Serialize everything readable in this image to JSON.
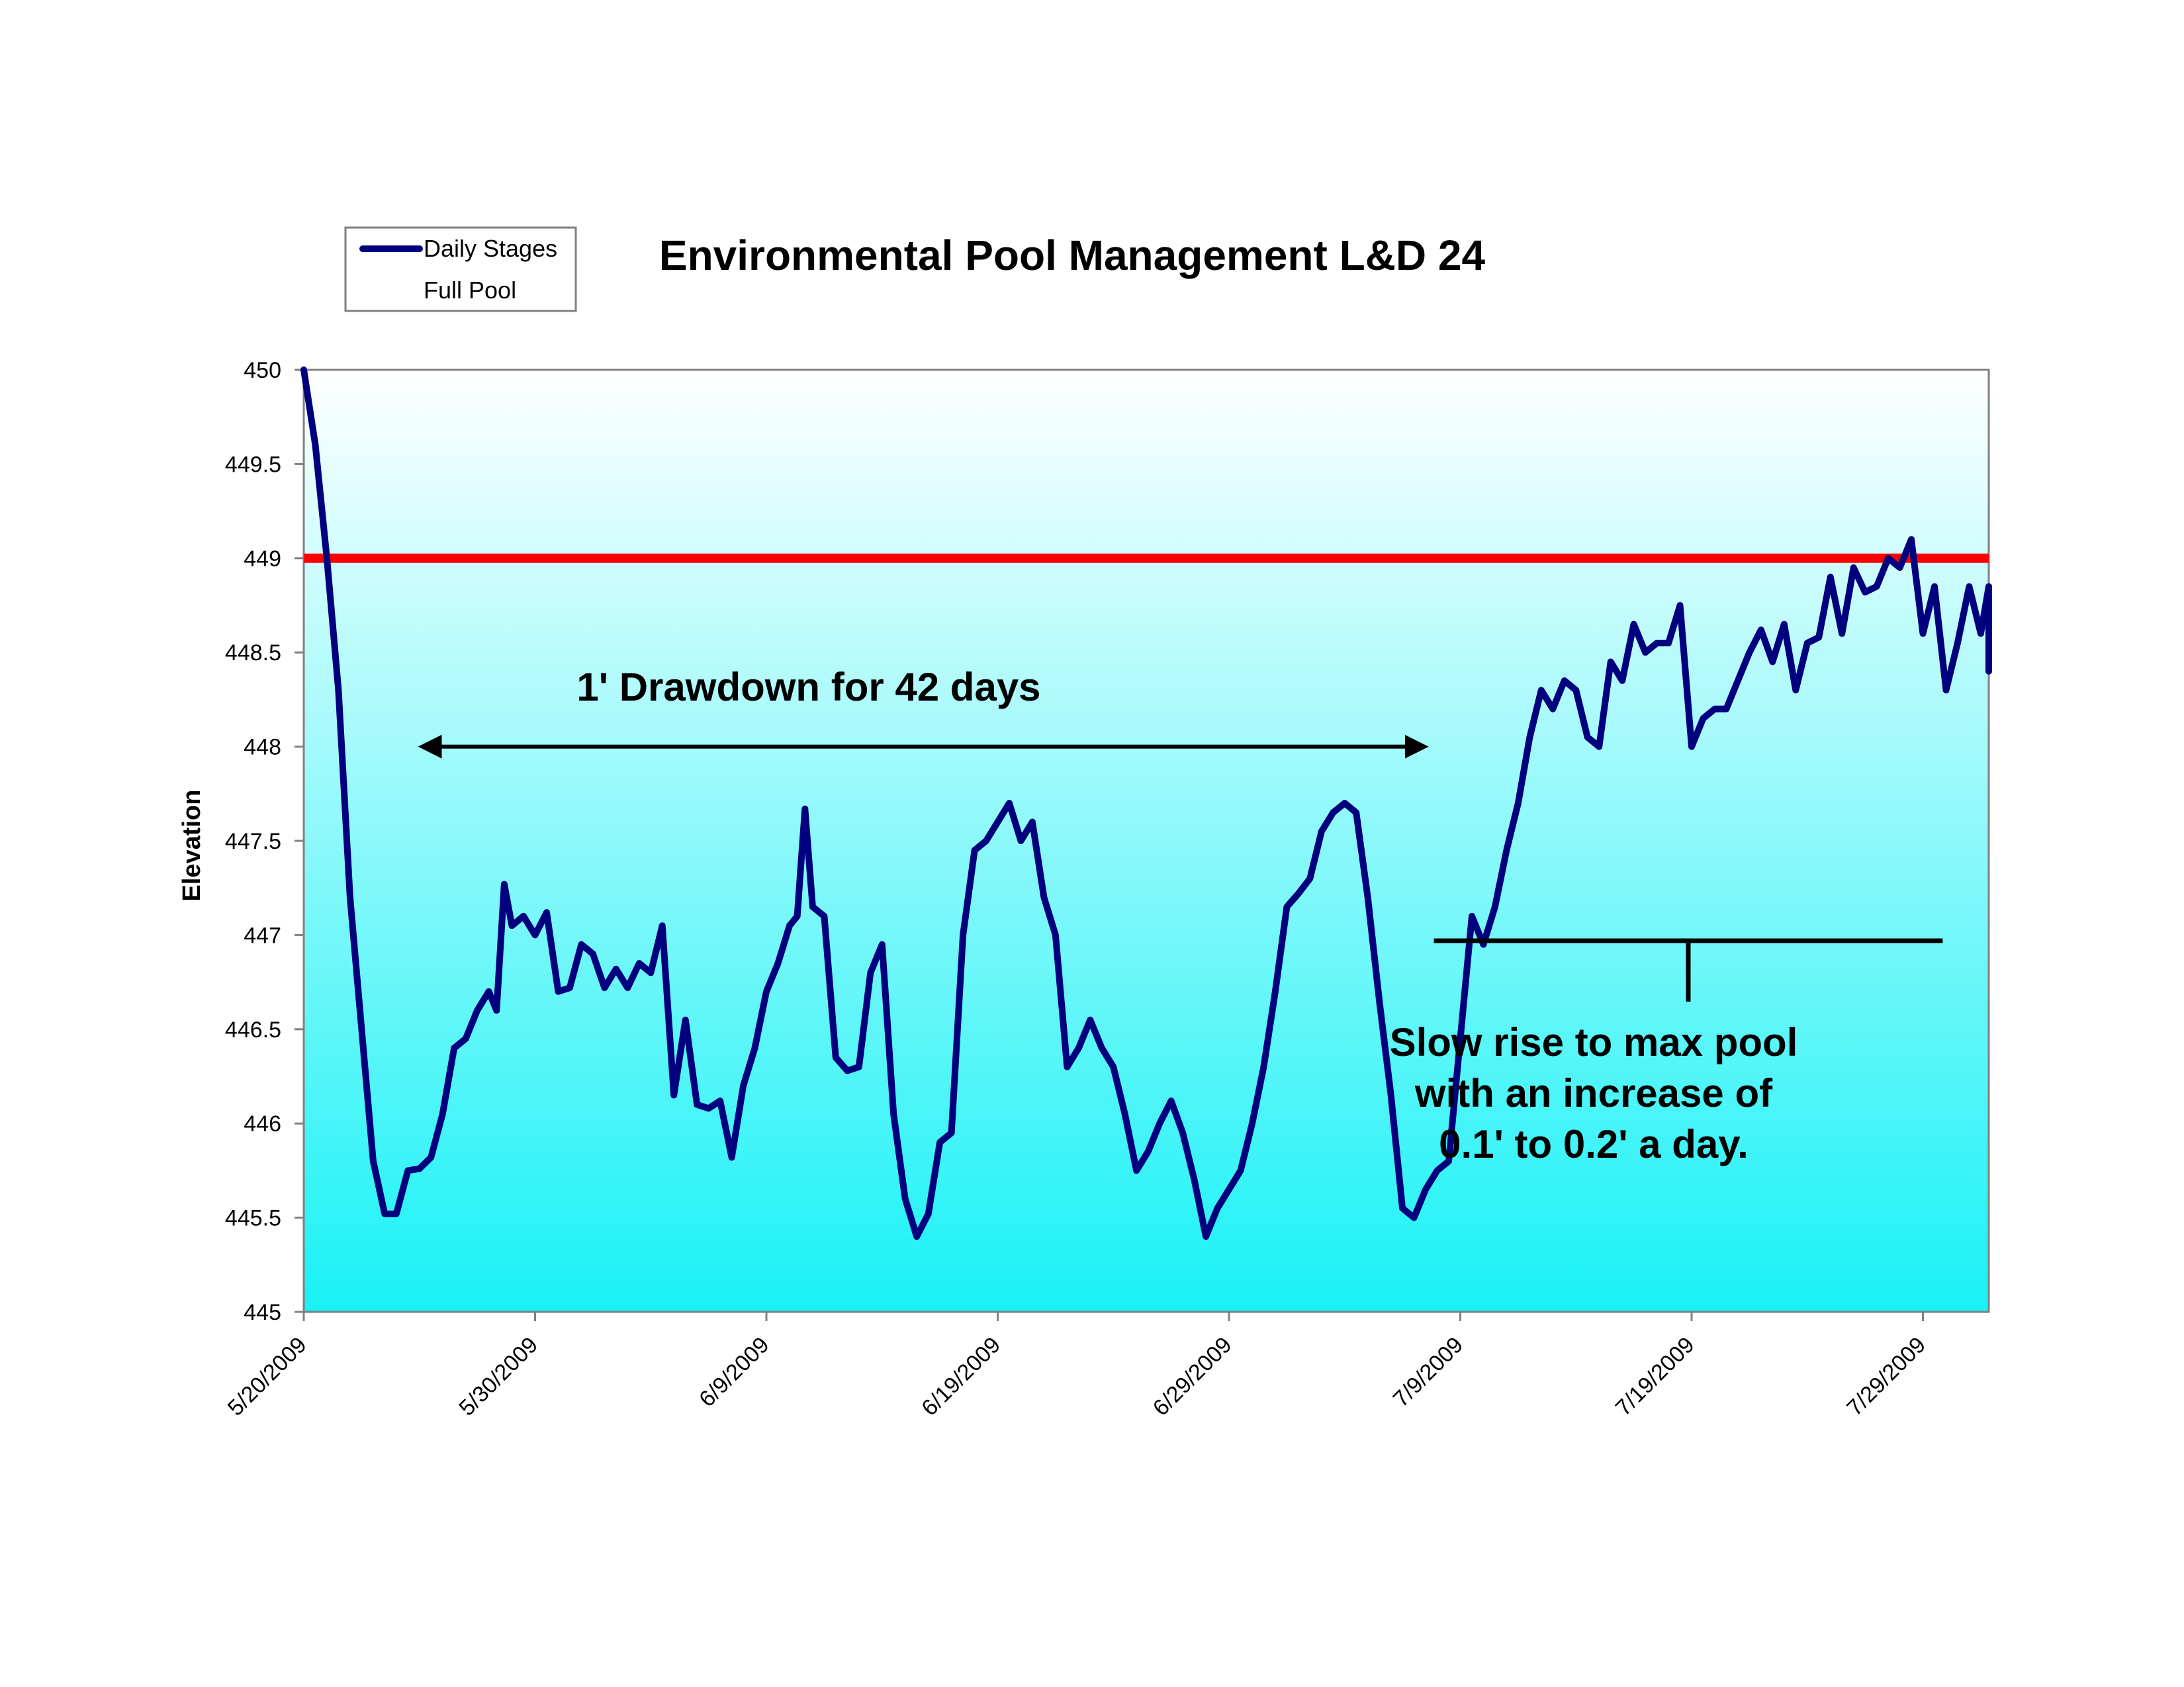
{
  "chart_data": {
    "type": "line",
    "title": "Environmental Pool Management L&D 24",
    "xlabel": "",
    "ylabel": "Elevation",
    "x_start": "5/20/2009",
    "x_end": "8/2/2009",
    "xticks": [
      "5/20/2009",
      "5/30/2009",
      "6/9/2009",
      "6/19/2009",
      "6/29/2009",
      "7/9/2009",
      "7/19/2009",
      "7/29/2009"
    ],
    "ylim": [
      445,
      450
    ],
    "yticks": [
      "445",
      "445.5",
      "446",
      "446.5",
      "447",
      "447.5",
      "448",
      "448.5",
      "449",
      "449.5",
      "450"
    ],
    "grid": false,
    "legend_position": "top-left",
    "series": [
      {
        "name": "Daily Stages",
        "color": "#00007f",
        "points": [
          [
            "5/20/2009",
            450.0
          ],
          [
            "5/20/2009",
            449.6
          ],
          [
            "5/21/2009",
            449.0
          ],
          [
            "5/21/2009",
            448.3
          ],
          [
            "5/22/2009",
            447.2
          ],
          [
            "5/22/2009",
            446.5
          ],
          [
            "5/23/2009",
            445.8
          ],
          [
            "5/23/2009",
            445.52
          ],
          [
            "5/24/2009",
            445.52
          ],
          [
            "5/24/2009",
            445.75
          ],
          [
            "5/25/2009",
            445.76
          ],
          [
            "5/25/2009",
            445.82
          ],
          [
            "5/26/2009",
            446.05
          ],
          [
            "5/26/2009",
            446.4
          ],
          [
            "5/27/2009",
            446.45
          ],
          [
            "5/27/2009",
            446.6
          ],
          [
            "5/28/2009",
            446.7
          ],
          [
            "5/28/2009",
            446.6
          ],
          [
            "5/28/2009",
            447.27
          ],
          [
            "5/29/2009",
            447.05
          ],
          [
            "5/29/2009",
            447.1
          ],
          [
            "5/30/2009",
            447.0
          ],
          [
            "5/30/2009",
            447.12
          ],
          [
            "5/31/2009",
            446.7
          ],
          [
            "5/31/2009",
            446.72
          ],
          [
            "6/1/2009",
            446.95
          ],
          [
            "6/1/2009",
            446.9
          ],
          [
            "6/2/2009",
            446.72
          ],
          [
            "6/2/2009",
            446.82
          ],
          [
            "6/3/2009",
            446.72
          ],
          [
            "6/3/2009",
            446.85
          ],
          [
            "6/4/2009",
            446.8
          ],
          [
            "6/4/2009",
            447.05
          ],
          [
            "6/5/2009",
            446.15
          ],
          [
            "6/5/2009",
            446.55
          ],
          [
            "6/6/2009",
            446.1
          ],
          [
            "6/6/2009",
            446.08
          ],
          [
            "6/7/2009",
            446.12
          ],
          [
            "6/7/2009",
            445.82
          ],
          [
            "6/8/2009",
            446.2
          ],
          [
            "6/8/2009",
            446.4
          ],
          [
            "6/9/2009",
            446.7
          ],
          [
            "6/9/2009",
            446.85
          ],
          [
            "6/10/2009",
            447.05
          ],
          [
            "6/10/2009",
            447.1
          ],
          [
            "6/10/2009",
            447.67
          ],
          [
            "6/11/2009",
            447.15
          ],
          [
            "6/11/2009",
            447.1
          ],
          [
            "6/12/2009",
            446.35
          ],
          [
            "6/12/2009",
            446.28
          ],
          [
            "6/13/2009",
            446.3
          ],
          [
            "6/13/2009",
            446.8
          ],
          [
            "6/14/2009",
            446.95
          ],
          [
            "6/14/2009",
            446.05
          ],
          [
            "6/15/2009",
            445.6
          ],
          [
            "6/15/2009",
            445.4
          ],
          [
            "6/16/2009",
            445.52
          ],
          [
            "6/16/2009",
            445.9
          ],
          [
            "6/17/2009",
            445.95
          ],
          [
            "6/17/2009",
            447.0
          ],
          [
            "6/18/2009",
            447.45
          ],
          [
            "6/18/2009",
            447.5
          ],
          [
            "6/19/2009",
            447.6
          ],
          [
            "6/19/2009",
            447.7
          ],
          [
            "6/20/2009",
            447.5
          ],
          [
            "6/20/2009",
            447.6
          ],
          [
            "6/21/2009",
            447.2
          ],
          [
            "6/21/2009",
            447.0
          ],
          [
            "6/22/2009",
            446.3
          ],
          [
            "6/22/2009",
            446.4
          ],
          [
            "6/23/2009",
            446.55
          ],
          [
            "6/23/2009",
            446.4
          ],
          [
            "6/24/2009",
            446.3
          ],
          [
            "6/24/2009",
            446.05
          ],
          [
            "6/25/2009",
            445.75
          ],
          [
            "6/25/2009",
            445.85
          ],
          [
            "6/26/2009",
            446.0
          ],
          [
            "6/26/2009",
            446.12
          ],
          [
            "6/27/2009",
            445.95
          ],
          [
            "6/27/2009",
            445.7
          ],
          [
            "6/28/2009",
            445.4
          ],
          [
            "6/28/2009",
            445.55
          ],
          [
            "6/29/2009",
            445.65
          ],
          [
            "6/29/2009",
            445.75
          ],
          [
            "6/30/2009",
            446.0
          ],
          [
            "6/30/2009",
            446.3
          ],
          [
            "7/1/2009",
            446.7
          ],
          [
            "7/1/2009",
            447.15
          ],
          [
            "7/2/2009",
            447.22
          ],
          [
            "7/2/2009",
            447.3
          ],
          [
            "7/3/2009",
            447.55
          ],
          [
            "7/3/2009",
            447.65
          ],
          [
            "7/4/2009",
            447.7
          ],
          [
            "7/4/2009",
            447.65
          ],
          [
            "7/5/2009",
            447.2
          ],
          [
            "7/5/2009",
            446.65
          ],
          [
            "7/6/2009",
            446.15
          ],
          [
            "7/6/2009",
            445.55
          ],
          [
            "7/7/2009",
            445.5
          ],
          [
            "7/7/2009",
            445.65
          ],
          [
            "7/8/2009",
            445.75
          ],
          [
            "7/8/2009",
            445.8
          ],
          [
            "7/9/2009",
            446.45
          ],
          [
            "7/9/2009",
            447.1
          ],
          [
            "7/10/2009",
            446.95
          ],
          [
            "7/10/2009",
            447.15
          ],
          [
            "7/11/2009",
            447.45
          ],
          [
            "7/11/2009",
            447.7
          ],
          [
            "7/12/2009",
            448.05
          ],
          [
            "7/12/2009",
            448.3
          ],
          [
            "7/13/2009",
            448.2
          ],
          [
            "7/13/2009",
            448.35
          ],
          [
            "7/14/2009",
            448.3
          ],
          [
            "7/14/2009",
            448.05
          ],
          [
            "7/15/2009",
            448.0
          ],
          [
            "7/15/2009",
            448.45
          ],
          [
            "7/16/2009",
            448.35
          ],
          [
            "7/16/2009",
            448.65
          ],
          [
            "7/17/2009",
            448.5
          ],
          [
            "7/17/2009",
            448.55
          ],
          [
            "7/18/2009",
            448.55
          ],
          [
            "7/18/2009",
            448.75
          ],
          [
            "7/19/2009",
            448.0
          ],
          [
            "7/19/2009",
            448.15
          ],
          [
            "7/20/2009",
            448.2
          ],
          [
            "7/20/2009",
            448.2
          ],
          [
            "7/21/2009",
            448.35
          ],
          [
            "7/21/2009",
            448.5
          ],
          [
            "7/22/2009",
            448.62
          ],
          [
            "7/22/2009",
            448.45
          ],
          [
            "7/23/2009",
            448.65
          ],
          [
            "7/23/2009",
            448.3
          ],
          [
            "7/24/2009",
            448.55
          ],
          [
            "7/24/2009",
            448.58
          ],
          [
            "7/25/2009",
            448.9
          ],
          [
            "7/25/2009",
            448.6
          ],
          [
            "7/26/2009",
            448.95
          ],
          [
            "7/26/2009",
            448.82
          ],
          [
            "7/27/2009",
            448.85
          ],
          [
            "7/27/2009",
            449.0
          ],
          [
            "7/28/2009",
            448.95
          ],
          [
            "7/28/2009",
            449.1
          ],
          [
            "7/29/2009",
            448.6
          ],
          [
            "7/29/2009",
            448.85
          ],
          [
            "7/30/2009",
            448.3
          ],
          [
            "7/30/2009",
            448.55
          ],
          [
            "7/31/2009",
            448.85
          ],
          [
            "7/31/2009",
            448.6
          ],
          [
            "8/1/2009",
            448.85
          ],
          [
            "8/1/2009",
            448.85
          ],
          [
            "8/2/2009",
            448.4
          ],
          [
            "8/2/2009",
            448.65
          ]
        ]
      },
      {
        "name": "Full Pool",
        "color": "#ff0000",
        "points": [
          [
            "5/20/2009",
            449.0
          ],
          [
            "8/2/2009",
            449.0
          ]
        ]
      }
    ],
    "annotations": [
      {
        "text": "1' Drawdown for 42 days",
        "type": "double-arrow",
        "from": "5/24/2009",
        "to": "7/8/2009",
        "y": 448.0
      },
      {
        "text_lines": [
          "Slow rise to max pool",
          "with an increase of",
          "0.1' to 0.2' a day."
        ],
        "type": "bracket",
        "from": "7/8/2009",
        "to": "7/31/2009",
        "y": 446.97
      }
    ]
  }
}
